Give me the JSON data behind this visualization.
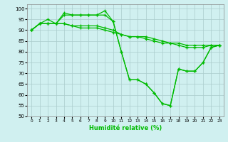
{
  "series": [
    [
      90,
      93,
      93,
      93,
      97,
      97,
      97,
      97,
      97,
      99,
      94,
      80,
      67,
      67,
      65,
      61,
      56,
      55,
      72,
      71,
      71,
      75,
      82,
      83
    ],
    [
      90,
      93,
      95,
      93,
      98,
      97,
      97,
      97,
      97,
      97,
      94,
      80,
      67,
      67,
      65,
      61,
      56,
      55,
      72,
      71,
      71,
      75,
      82,
      83
    ],
    [
      90,
      93,
      93,
      93,
      93,
      92,
      92,
      92,
      92,
      91,
      90,
      88,
      87,
      87,
      87,
      86,
      85,
      84,
      84,
      83,
      83,
      83,
      83,
      83
    ],
    [
      90,
      93,
      93,
      93,
      93,
      92,
      91,
      91,
      91,
      90,
      89,
      88,
      87,
      87,
      86,
      85,
      84,
      84,
      83,
      82,
      82,
      82,
      83,
      83
    ]
  ],
  "xlabel": "Humidité relative (%)",
  "ylim": [
    50,
    102
  ],
  "xlim": [
    -0.5,
    23.5
  ],
  "yticks": [
    50,
    55,
    60,
    65,
    70,
    75,
    80,
    85,
    90,
    95,
    100
  ],
  "xticks": [
    0,
    1,
    2,
    3,
    4,
    5,
    6,
    7,
    8,
    9,
    10,
    11,
    12,
    13,
    14,
    15,
    16,
    17,
    18,
    19,
    20,
    21,
    22,
    23
  ],
  "color": "#00bb00",
  "bg_color": "#d0f0f0",
  "grid_color": "#aacccc"
}
